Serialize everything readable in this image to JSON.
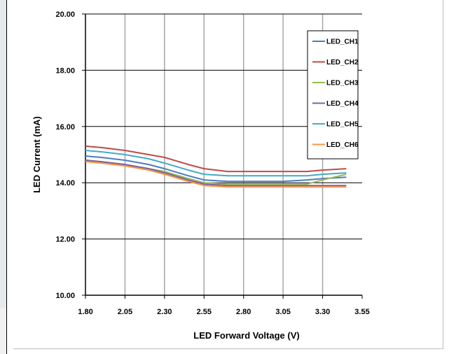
{
  "chart_data": {
    "type": "line",
    "title": "",
    "xlabel": "LED Forward Voltage (V)",
    "ylabel": "LED Current (mA)",
    "xlim": [
      1.8,
      3.55
    ],
    "ylim": [
      10.0,
      20.0
    ],
    "x_ticks": [
      "1.80",
      "2.05",
      "2.30",
      "2.55",
      "2.80",
      "3.05",
      "3.30",
      "3.55"
    ],
    "y_ticks": [
      "20.00",
      "18.00",
      "16.00",
      "14.00",
      "12.00",
      "10.00"
    ],
    "grid": true,
    "legend_position": "top-right",
    "x": [
      1.8,
      1.9,
      2.05,
      2.2,
      2.3,
      2.45,
      2.55,
      2.7,
      2.8,
      2.95,
      3.05,
      3.2,
      3.3,
      3.45
    ],
    "series": [
      {
        "name": "LED_CH1",
        "color": "#4a7ebb",
        "values": [
          14.95,
          14.9,
          14.8,
          14.65,
          14.5,
          14.25,
          14.1,
          14.05,
          14.05,
          14.05,
          14.05,
          14.1,
          14.15,
          14.2
        ]
      },
      {
        "name": "LED_CH2",
        "color": "#be4b48",
        "values": [
          15.3,
          15.25,
          15.15,
          15.0,
          14.9,
          14.65,
          14.5,
          14.4,
          14.4,
          14.4,
          14.4,
          14.4,
          14.45,
          14.5
        ]
      },
      {
        "name": "LED_CH3",
        "color": "#98b954",
        "values": [
          14.8,
          14.75,
          14.65,
          14.5,
          14.4,
          14.15,
          14.0,
          13.95,
          13.95,
          13.95,
          13.95,
          13.95,
          14.1,
          14.3
        ]
      },
      {
        "name": "LED_CH4",
        "color": "#7d60a0",
        "values": [
          14.8,
          14.75,
          14.65,
          14.5,
          14.35,
          14.1,
          13.95,
          13.9,
          13.9,
          13.9,
          13.9,
          13.9,
          13.9,
          13.9
        ]
      },
      {
        "name": "LED_CH5",
        "color": "#46aac5",
        "values": [
          15.15,
          15.1,
          15.0,
          14.85,
          14.7,
          14.45,
          14.3,
          14.25,
          14.25,
          14.25,
          14.25,
          14.25,
          14.3,
          14.35
        ]
      },
      {
        "name": "LED_CH6",
        "color": "#f79646",
        "values": [
          14.75,
          14.7,
          14.6,
          14.45,
          14.3,
          14.05,
          13.9,
          13.85,
          13.85,
          13.85,
          13.85,
          13.85,
          13.85,
          13.85
        ]
      }
    ]
  }
}
